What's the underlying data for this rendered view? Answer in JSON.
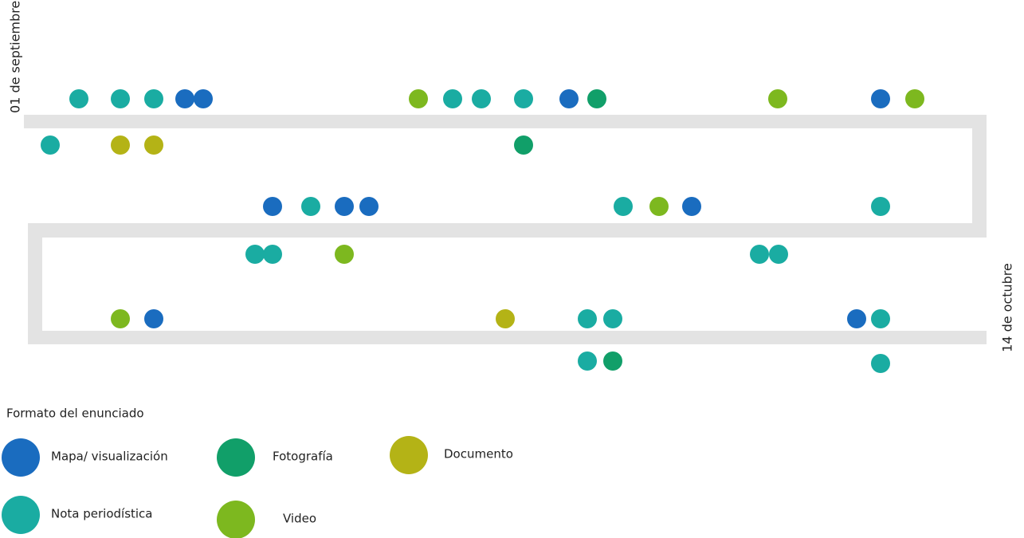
{
  "start_label": "01 de septiembre",
  "end_label": "14 de octubre",
  "legend": {
    "title": "Formato del enunciado",
    "items": [
      {
        "name": "Mapa/ visualización",
        "color": "#1a6cbf"
      },
      {
        "name": "Nota periodística",
        "color": "#1aaca2"
      },
      {
        "name": "Fotografía",
        "color": "#119f69"
      },
      {
        "name": "Video",
        "color": "#7db81f"
      },
      {
        "name": "Documento",
        "color": "#b4b316"
      }
    ]
  }
}
